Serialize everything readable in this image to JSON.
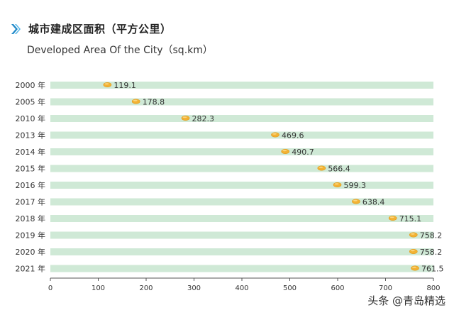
{
  "chart_data": {
    "type": "bar",
    "title": "城市建成区面积（平方公里）",
    "subtitle": "Developed Area Of the City（sq.km）",
    "categories": [
      "2000 年",
      "2005 年",
      "2010 年",
      "2013 年",
      "2014 年",
      "2015 年",
      "2016 年",
      "2017 年",
      "2018 年",
      "2019 年",
      "2020 年",
      "2021 年"
    ],
    "values": [
      119.1,
      178.8,
      282.3,
      469.6,
      490.7,
      566.4,
      599.3,
      638.4,
      715.1,
      758.2,
      758.2,
      761.5
    ],
    "value_labels": [
      "119.1",
      "178.8",
      "282.3",
      "469.6",
      "490.7",
      "566.4",
      "599.3",
      "638.4",
      "715.1",
      "758.2",
      "758.2",
      "761.5"
    ],
    "xlim": [
      0,
      800
    ],
    "xticks": [
      0,
      100,
      200,
      300,
      400,
      500,
      600,
      700,
      800
    ],
    "orientation": "horizontal",
    "colors": {
      "track": "#cfe9d6",
      "marker": "#f2b233",
      "axis": "#555555",
      "accent": "#1e88c8"
    }
  },
  "watermark": "头条 @青岛精选"
}
